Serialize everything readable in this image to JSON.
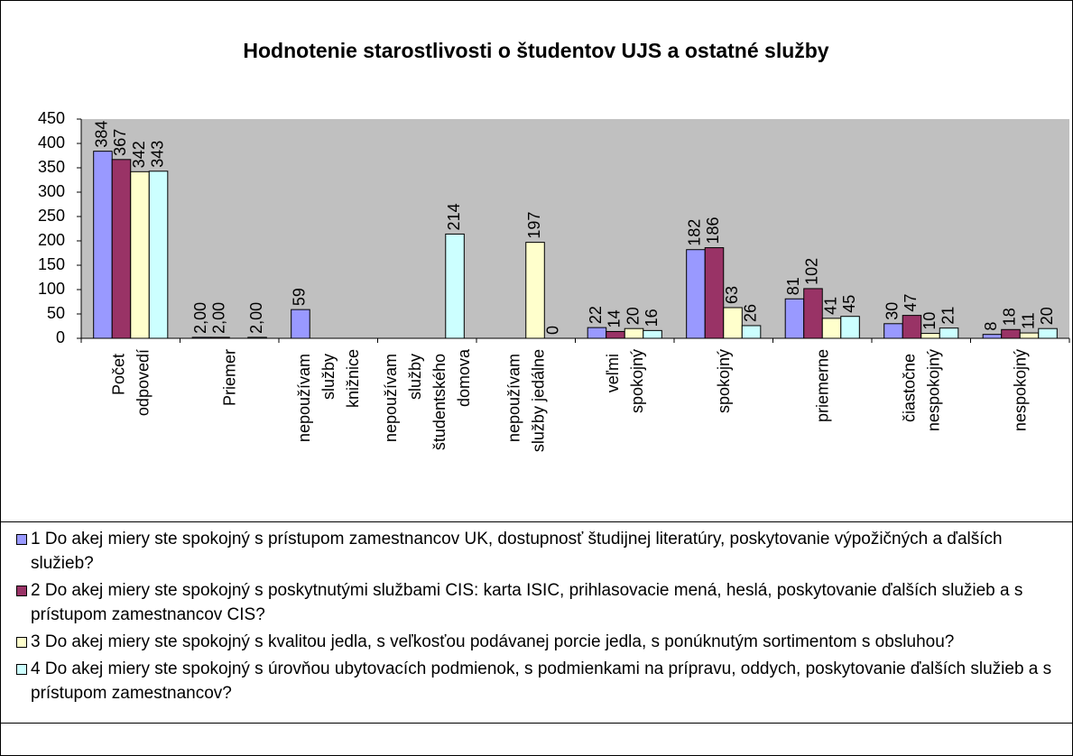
{
  "chart_data": {
    "type": "bar",
    "title": "Hodnotenie starostlivosti o študentov UJS a ostatné služby",
    "categories": [
      "Počet\nodpovedí",
      "Priemer",
      "nepoužívam\nslužby\nknižnice",
      "nepoužívam\nslužby\nštudentského\ndomova",
      "nepoužívam\nslužby jedálne",
      "veľmi\nspokojný",
      "spokojný",
      "priemerne",
      "čiastočne\nnespokojný",
      "nespokojný"
    ],
    "series": [
      {
        "name": "1 Do akej miery ste spokojný s prístupom zamestnancov UK, dostupnosť študijnej literatúry, poskytovanie výpožičných a ďalších služieb?",
        "color": "#9999ff",
        "values": [
          384,
          2,
          59,
          null,
          null,
          22,
          182,
          81,
          30,
          8
        ],
        "value_labels": [
          null,
          "2,00",
          null,
          null,
          null,
          null,
          null,
          null,
          null,
          null
        ]
      },
      {
        "name": "2 Do akej miery ste spokojný s poskytnutými službami CIS: karta ISIC, prihlasovacie mená, heslá, poskytovanie ďalších služieb a s prístupom zamestnancov CIS?",
        "color": "#993366",
        "values": [
          367,
          2,
          null,
          null,
          null,
          14,
          186,
          102,
          47,
          18
        ],
        "value_labels": [
          null,
          "2,00",
          null,
          null,
          null,
          null,
          null,
          null,
          null,
          null
        ]
      },
      {
        "name": "3 Do akej miery ste spokojný s kvalitou jedla, s veľkosťou podávanej porcie jedla, s ponúknutým sortimentom s obsluhou?",
        "color": "#ffffcc",
        "values": [
          342,
          null,
          null,
          null,
          197,
          20,
          63,
          41,
          10,
          11
        ]
      },
      {
        "name": "4 Do akej miery ste spokojný s úrovňou ubytovacích podmienok, s podmienkami na prípravu, oddych, poskytovanie ďalších služieb a s prístupom zamestnancov?",
        "color": "#ccffff",
        "values": [
          343,
          2,
          null,
          214,
          0,
          16,
          26,
          45,
          21,
          20
        ],
        "value_labels": [
          null,
          "2,00",
          null,
          null,
          null,
          null,
          null,
          null,
          null,
          null
        ]
      }
    ],
    "ylim": [
      0,
      450
    ],
    "yticks": [
      0,
      50,
      100,
      150,
      200,
      250,
      300,
      350,
      400,
      450
    ],
    "legend": "bottom"
  }
}
